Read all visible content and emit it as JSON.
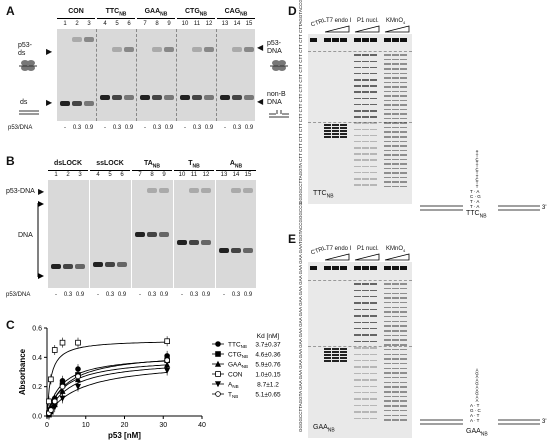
{
  "panels": {
    "A": {
      "label": "A",
      "groups": [
        "CON",
        "TTC",
        "GAA",
        "CTG",
        "CAG"
      ],
      "group_sub": "NB",
      "lanes": [
        "1",
        "2",
        "3",
        "4",
        "5",
        "6",
        "7",
        "8",
        "9",
        "10",
        "11",
        "12",
        "13",
        "14",
        "15"
      ],
      "left_labels": {
        "p53_ds": "p53-\nds",
        "ds": "ds"
      },
      "right_labels": {
        "p53_dna": "p53-\nDNA",
        "nonb": "non-B\nDNA"
      },
      "ratio_label": "p53/DNA",
      "ratios": [
        "-",
        "0.3",
        "0.9"
      ]
    },
    "B": {
      "label": "B",
      "groups": [
        "dsLOCK",
        "ssLOCK",
        "TA",
        "T",
        "A"
      ],
      "group_subs": [
        "",
        "",
        "NB",
        "NB",
        "NB"
      ],
      "lanes": [
        "1",
        "2",
        "3",
        "4",
        "5",
        "6",
        "7",
        "8",
        "9",
        "10",
        "11",
        "12",
        "13",
        "14",
        "15"
      ],
      "left_labels": {
        "p53_dna": "p53-DNA",
        "dna": "DNA"
      },
      "ratio_label": "p53/DNA",
      "ratios": [
        "-",
        "0.3",
        "0.9"
      ]
    },
    "C": {
      "label": "C",
      "kd_header": "Kd [nM]",
      "legend": [
        {
          "name": "TTC",
          "sub": "NB",
          "kd": "3.7±0.37",
          "marker": "circle-filled"
        },
        {
          "name": "CTG",
          "sub": "NB",
          "kd": "4.6±0.36",
          "marker": "square-filled"
        },
        {
          "name": "GAA",
          "sub": "NB",
          "kd": "5.9±0.76",
          "marker": "triangle-filled"
        },
        {
          "name": "CON",
          "sub": "",
          "kd": "1.0±0.15",
          "marker": "square-open"
        },
        {
          "name": "A",
          "sub": "NB",
          "kd": "8.7±1.2",
          "marker": "triangle-down-filled"
        },
        {
          "name": "T",
          "sub": "NB",
          "kd": "5.1±0.65",
          "marker": "circle-open"
        }
      ]
    },
    "D": {
      "label": "D",
      "col_headers": [
        "CTRL",
        "T7 endo I",
        "P1 nucl.",
        "KMnO"
      ],
      "kmno_sub": "4",
      "sequence": "GGGGCCTTAGGTA CTT CTT CTT CTT CTT CTT CTT CTT CTT CTT CTT CTT CTT CTTAGGTACCGGGCCG",
      "gel_tag": "TTC",
      "gel_tag_sub": "NB",
      "hairpin_letters": [
        "T",
        "T",
        "C",
        "T",
        "T",
        "C",
        "T",
        "T",
        "C",
        "T",
        "T",
        "C",
        "T",
        "T"
      ],
      "duplex_pairs": [
        "T · A",
        "T · A",
        "C · G",
        "T · A"
      ],
      "end5": "5'",
      "end3": "3'",
      "struct_tag": "TTC",
      "struct_sub": "NB"
    },
    "E": {
      "label": "E",
      "col_headers": [
        "CTRL",
        "T7 endo I",
        "P1 nucl.",
        "KMnO"
      ],
      "kmno_sub": "4",
      "sequence": "GGGGCCTTAGGTA GAA GAA GAA GAA GAA GAA GAA GAA GAA GAA GAA GAA GAA GAATGGTACCGGGCCG",
      "gel_tag": "GAA",
      "gel_tag_sub": "NB",
      "hairpin_letters": [
        "A",
        "A",
        "G",
        "A",
        "A",
        "G",
        "A",
        "A",
        "G",
        "A",
        "A",
        "G",
        "A",
        "G",
        "A",
        "A",
        "G"
      ],
      "duplex_pairs": [
        "A · T",
        "A · T",
        "G · C",
        "A · T"
      ],
      "end5": "5'",
      "end3": "3'",
      "struct_tag": "GAA",
      "struct_sub": "NB"
    }
  },
  "chart_data": {
    "type": "scatter",
    "title": "",
    "xlabel": "p53 [nM]",
    "ylabel": "Absorbance",
    "xlim": [
      0,
      40
    ],
    "ylim": [
      0.0,
      0.6
    ],
    "xticks": [
      "0",
      "10",
      "20",
      "30",
      "40"
    ],
    "yticks": [
      "0.0",
      "0.2",
      "0.4",
      "0.6"
    ],
    "series": [
      {
        "name": "TTCNB",
        "marker": "circle-filled",
        "kd": 3.7,
        "bmax": 0.42,
        "x": [
          0.5,
          1,
          2,
          4,
          8,
          31
        ],
        "y": [
          0.02,
          0.05,
          0.12,
          0.24,
          0.32,
          0.41
        ]
      },
      {
        "name": "CTGNB",
        "marker": "square-filled",
        "kd": 4.6,
        "bmax": 0.4,
        "x": [
          0.5,
          1,
          2,
          4,
          8,
          31
        ],
        "y": [
          0.02,
          0.04,
          0.1,
          0.21,
          0.28,
          0.38
        ]
      },
      {
        "name": "GAANB",
        "marker": "triangle-filled",
        "kd": 5.9,
        "bmax": 0.39,
        "x": [
          0.5,
          1,
          2,
          4,
          8,
          31
        ],
        "y": [
          0.01,
          0.03,
          0.08,
          0.17,
          0.25,
          0.35
        ]
      },
      {
        "name": "CON",
        "marker": "square-open",
        "kd": 1.0,
        "bmax": 0.52,
        "x": [
          0.5,
          1,
          2,
          4,
          8,
          31
        ],
        "y": [
          0.1,
          0.25,
          0.45,
          0.5,
          0.5,
          0.51
        ]
      },
      {
        "name": "ANB",
        "marker": "triangle-down-filled",
        "kd": 8.7,
        "bmax": 0.38,
        "x": [
          0.5,
          1,
          2,
          4,
          8,
          31
        ],
        "y": [
          0.01,
          0.03,
          0.06,
          0.12,
          0.2,
          0.31
        ]
      },
      {
        "name": "TNB",
        "marker": "circle-open",
        "kd": 5.1,
        "bmax": 0.44,
        "x": [
          0.5,
          1,
          2,
          4,
          8,
          31
        ],
        "y": [
          0.02,
          0.04,
          0.1,
          0.2,
          0.27,
          0.38
        ]
      }
    ]
  }
}
